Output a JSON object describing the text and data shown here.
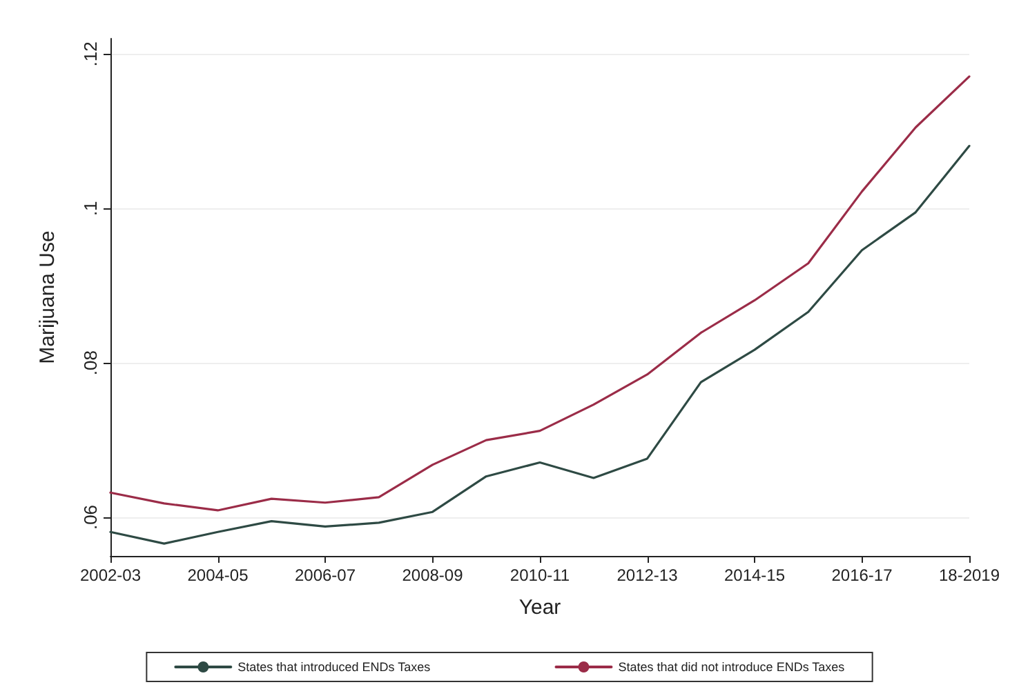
{
  "chart_data": {
    "type": "line",
    "xlabel": "Year",
    "ylabel": "Marijuana Use",
    "categories": [
      "2002-03",
      null,
      "2004-05",
      null,
      "2006-07",
      null,
      "2008-09",
      null,
      "2010-11",
      null,
      "2012-13",
      null,
      "2014-15",
      null,
      "2016-17",
      null,
      "18-2019"
    ],
    "series": [
      {
        "name": "States that introduced ENDs Taxes",
        "color": "#2e4a44",
        "values": [
          0.0581,
          0.0566,
          0.0581,
          0.0595,
          0.0588,
          0.0593,
          0.0607,
          0.0653,
          0.0671,
          0.0651,
          0.0676,
          0.0775,
          0.0817,
          0.0866,
          0.0946,
          0.0995,
          0.1081
        ]
      },
      {
        "name": "States that did not introduce ENDs Taxes",
        "color": "#9b2c48",
        "values": [
          0.0632,
          0.0618,
          0.0609,
          0.0624,
          0.0619,
          0.0626,
          0.0668,
          0.07,
          0.0712,
          0.0746,
          0.0785,
          0.0839,
          0.0881,
          0.0929,
          0.1022,
          0.1105,
          0.1171
        ]
      }
    ],
    "ylim": [
      0.055,
      0.122
    ],
    "yticks": [
      {
        "value": 0.06,
        "label": ".06"
      },
      {
        "value": 0.08,
        "label": ".08"
      },
      {
        "value": 0.1,
        "label": ".1"
      },
      {
        "value": 0.12,
        "label": ".12"
      }
    ],
    "grid": "y",
    "legend": "bottom",
    "marker": "none",
    "line_style": "solid"
  }
}
